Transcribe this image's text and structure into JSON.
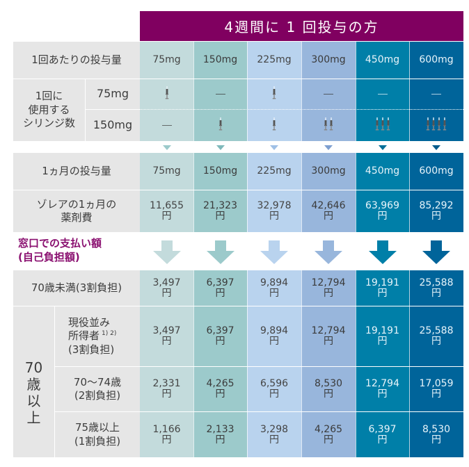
{
  "header": {
    "title": "4週間に 1 回投与の方",
    "color": "#800060"
  },
  "columns": [
    {
      "dose": "75mg",
      "color": "#c3dbdc"
    },
    {
      "dose": "150mg",
      "color": "#9ccacb"
    },
    {
      "dose": "225mg",
      "color": "#b9d3ee"
    },
    {
      "dose": "300mg",
      "color": "#98b6dc"
    },
    {
      "dose": "450mg",
      "color": "#007fa8"
    },
    {
      "dose": "600mg",
      "color": "#00649a"
    }
  ],
  "rows": {
    "per_dose": {
      "label": "1回あたりの投与量",
      "values": [
        "75mg",
        "150mg",
        "225mg",
        "300mg",
        "450mg",
        "600mg"
      ]
    },
    "syringes": {
      "label_lines": [
        "1回に",
        "使用する",
        "シリンジ数"
      ],
      "sub": [
        {
          "label": "75mg",
          "counts": [
            1,
            0,
            1,
            0,
            0,
            0
          ]
        },
        {
          "label": "150mg",
          "counts": [
            0,
            1,
            1,
            2,
            3,
            4
          ]
        }
      ],
      "none_symbol": "—",
      "icon": "syringe-icon"
    },
    "monthly_dose": {
      "label": "1ヵ月の投与量",
      "values": [
        "75mg",
        "150mg",
        "225mg",
        "300mg",
        "450mg",
        "600mg"
      ]
    },
    "drug_cost": {
      "label_lines": [
        "ゾレアの1ヵ月の",
        "薬剤費"
      ],
      "values": [
        "11,655",
        "21,323",
        "32,978",
        "42,646",
        "63,969",
        "85,292"
      ],
      "unit": "円"
    },
    "payment_heading": {
      "lines": [
        "窓口での支払い額",
        "(自己負担額)"
      ],
      "color": "#8a1070"
    },
    "under70": {
      "label": "70歳未満(3割負担)",
      "values": [
        "3,497",
        "6,397",
        "9,894",
        "12,794",
        "19,191",
        "25,588"
      ],
      "unit": "円"
    },
    "over70": {
      "group_label": [
        "70",
        "歳",
        "以",
        "上"
      ],
      "sub": [
        {
          "label_lines": [
            "現役並み",
            "所得者",
            "(3割負担)"
          ],
          "note": "1) 2)",
          "values": [
            "3,497",
            "6,397",
            "9,894",
            "12,794",
            "19,191",
            "25,588"
          ]
        },
        {
          "label_lines": [
            "70〜74歳",
            "(2割負担)"
          ],
          "values": [
            "2,331",
            "4,265",
            "6,596",
            "8,530",
            "12,794",
            "17,059"
          ]
        },
        {
          "label_lines": [
            "75歳以上",
            "(1割負担)"
          ],
          "values": [
            "1,166",
            "2,133",
            "3,298",
            "4,265",
            "6,397",
            "8,530"
          ]
        }
      ],
      "unit": "円"
    }
  },
  "chart_data": {
    "type": "table",
    "title": "4週間に 1 回投与の方",
    "categories": [
      "75mg",
      "150mg",
      "225mg",
      "300mg",
      "450mg",
      "600mg"
    ],
    "series": [
      {
        "name": "ゾレアの1ヵ月の薬剤費 (円)",
        "values": [
          11655,
          21323,
          32978,
          42646,
          63969,
          85292
        ]
      },
      {
        "name": "70歳未満(3割負担) (円)",
        "values": [
          3497,
          6397,
          9894,
          12794,
          19191,
          25588
        ]
      },
      {
        "name": "70歳以上 現役並み所得者(3割負担) (円)",
        "values": [
          3497,
          6397,
          9894,
          12794,
          19191,
          25588
        ]
      },
      {
        "name": "70〜74歳(2割負担) (円)",
        "values": [
          2331,
          4265,
          6596,
          8530,
          12794,
          17059
        ]
      },
      {
        "name": "75歳以上(1割負担) (円)",
        "values": [
          1166,
          2133,
          3298,
          4265,
          6397,
          8530
        ]
      }
    ]
  }
}
